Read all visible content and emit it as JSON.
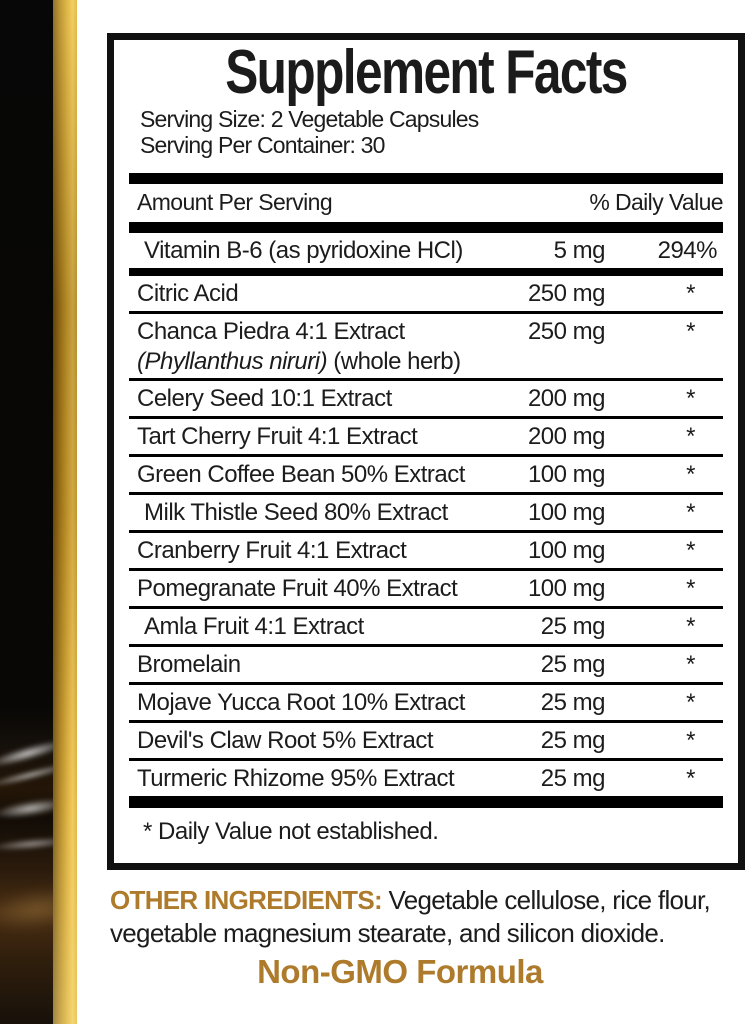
{
  "label": {
    "title": "Supplement Facts",
    "serving_size": "Serving Size: 2 Vegetable Capsules",
    "servings_per_container": "Serving Per Container: 30",
    "header": {
      "amount_per_serving": "Amount Per Serving",
      "daily_value": "% Daily Value"
    },
    "rows": [
      {
        "name": "Vitamin B-6 (as pyridoxine HCl)",
        "amount": "5 mg",
        "dv": "294%"
      },
      {
        "name": "Citric Acid",
        "amount": "250 mg",
        "dv": "*"
      },
      {
        "name": "Chanca Piedra 4:1 Extract",
        "name_line2_italic": "(Phyllanthus niruri)",
        "name_line2_rest": " (whole herb)",
        "amount": "250 mg",
        "dv": "*"
      },
      {
        "name": "Celery Seed 10:1 Extract",
        "amount": "200 mg",
        "dv": "*"
      },
      {
        "name": "Tart Cherry Fruit 4:1 Extract",
        "amount": "200 mg",
        "dv": "*"
      },
      {
        "name": "Green Coffee Bean 50% Extract",
        "amount": "100 mg",
        "dv": "*"
      },
      {
        "name": "Milk Thistle Seed 80% Extract",
        "amount": "100 mg",
        "dv": "*"
      },
      {
        "name": "Cranberry Fruit 4:1 Extract",
        "amount": "100 mg",
        "dv": "*"
      },
      {
        "name": "Pomegranate Fruit 40% Extract",
        "amount": "100 mg",
        "dv": "*"
      },
      {
        "name": "Amla Fruit 4:1 Extract",
        "amount": "25 mg",
        "dv": "*"
      },
      {
        "name": "Bromelain",
        "amount": "25 mg",
        "dv": "*"
      },
      {
        "name": "Mojave Yucca Root 10% Extract",
        "amount": "25 mg",
        "dv": "*"
      },
      {
        "name": "Devil's Claw Root 5% Extract",
        "amount": "25 mg",
        "dv": "*"
      },
      {
        "name": "Turmeric Rhizome 95% Extract",
        "amount": "25 mg",
        "dv": "*"
      }
    ],
    "footnote": "* Daily Value not established."
  },
  "other_ingredients": {
    "heading": "OTHER INGREDIENTS:",
    "text": " Vegetable cellulose, rice flour, vegetable magnesium stearate, and silicon dioxide."
  },
  "non_gmo": "Non-GMO Formula",
  "colors": {
    "accent_gold": "#ad7b2b",
    "stripe_gold_bright": "#eec758",
    "stripe_gold_dark": "#5f460f",
    "label_border": "#111111"
  }
}
